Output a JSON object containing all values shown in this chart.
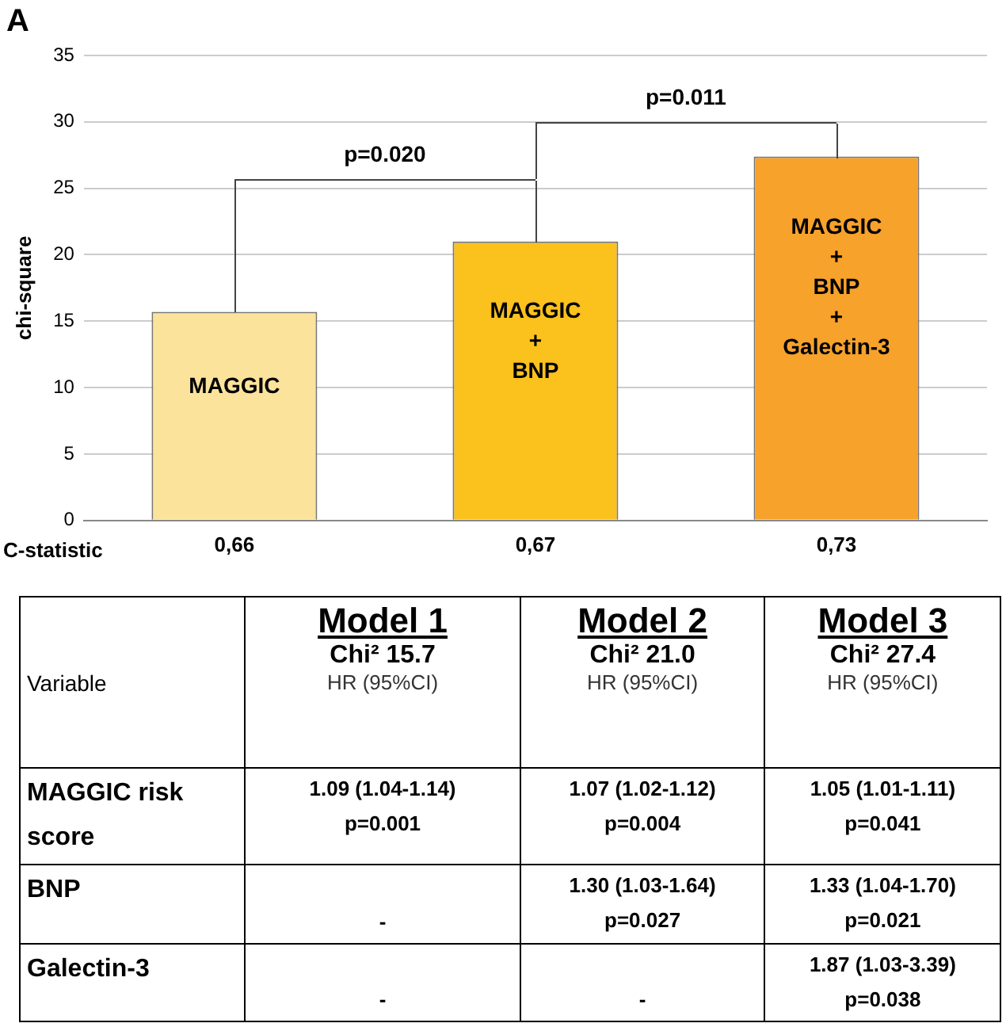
{
  "chart_data": [
    {
      "type": "bar",
      "title": "A",
      "ylabel": "chi-square",
      "xlabel": "C-statistic",
      "categories": [
        "0,66",
        "0,67",
        "0,73"
      ],
      "values": [
        15.7,
        21.0,
        27.4
      ],
      "colors": [
        "#fbe39b",
        "#fbc11c",
        "#f6a22b"
      ],
      "ylim": [
        0,
        35
      ],
      "yticks": [
        0,
        5,
        10,
        15,
        20,
        25,
        30,
        35
      ],
      "grid": "y",
      "legend": false,
      "annotations": [
        "MAGGIC",
        "MAGGIC\n+\nBNP",
        "MAGGIC\n+\nBNP\n+\nGalectin-3",
        "p=0.020",
        "p=0.011"
      ]
    },
    {
      "type": "other",
      "annotations": [
        "Variable",
        "Model 1\nChi² 15.7\nHR (95%CI)",
        "Model 2\nChi² 21.0\nHR (95%CI)",
        "Model 3\nChi² 27.4\nHR (95%CI)",
        "MAGGIC risk\nscore",
        "1.09 (1.04-1.14)\np=0.001",
        "1.07 (1.02-1.12)\np=0.004",
        "1.05 (1.01-1.11)\np=0.041",
        "BNP",
        "-",
        "1.30 (1.03-1.64)\np=0.027",
        "1.33 (1.04-1.70)\np=0.021",
        "Galectin-3",
        "-",
        "-",
        "1.87 (1.03-3.39)\np=0.038"
      ]
    }
  ]
}
